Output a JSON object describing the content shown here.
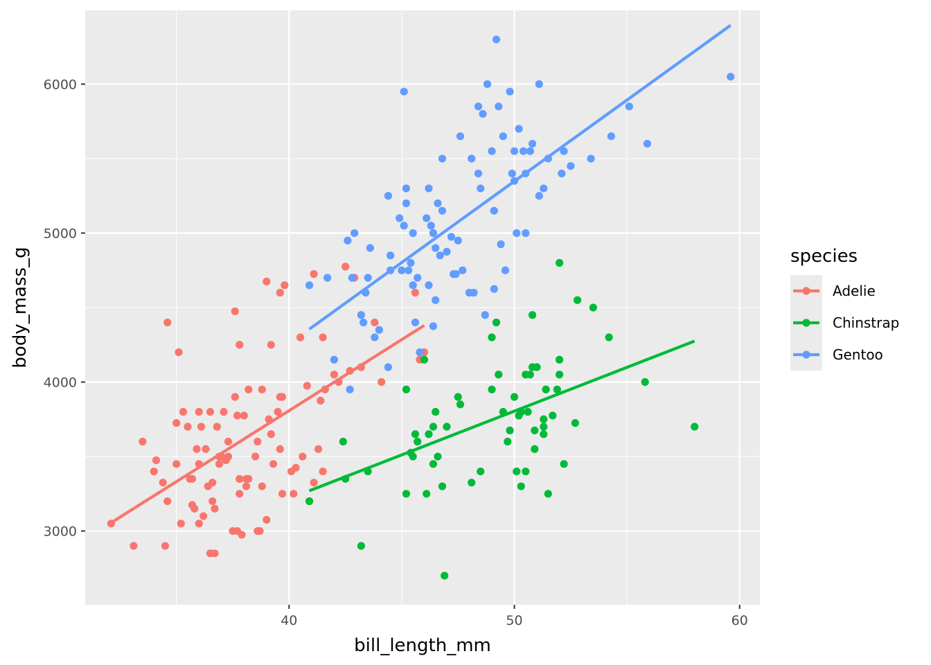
{
  "chart_data": {
    "type": "scatter",
    "title": "",
    "xlabel": "bill_length_mm",
    "ylabel": "body_mass_g",
    "xlim": [
      30.95,
      60.9
    ],
    "ylim": [
      2505,
      6495
    ],
    "x_ticks": [
      40,
      50,
      60
    ],
    "y_ticks": [
      3000,
      4000,
      5000,
      6000
    ],
    "x_tick_labels": [
      "40",
      "50",
      "60"
    ],
    "y_tick_labels": [
      "3000",
      "4000",
      "5000",
      "6000"
    ],
    "grid": true,
    "legend": {
      "title": "species",
      "placement": "right"
    },
    "series": [
      {
        "name": "Adelie",
        "color": "#F8766D",
        "points": [
          [
            32.1,
            3050
          ],
          [
            33.1,
            2900
          ],
          [
            33.5,
            3600
          ],
          [
            34.0,
            3400
          ],
          [
            34.1,
            3475
          ],
          [
            34.4,
            3325
          ],
          [
            34.5,
            2900
          ],
          [
            34.6,
            3200
          ],
          [
            34.6,
            4400
          ],
          [
            35.0,
            3450
          ],
          [
            35.0,
            3725
          ],
          [
            35.1,
            4200
          ],
          [
            35.2,
            3050
          ],
          [
            35.3,
            3800
          ],
          [
            35.5,
            3700
          ],
          [
            35.6,
            3350
          ],
          [
            35.7,
            3175
          ],
          [
            35.7,
            3350
          ],
          [
            35.8,
            3150
          ],
          [
            35.9,
            3550
          ],
          [
            36.0,
            3800
          ],
          [
            36.0,
            3050
          ],
          [
            36.0,
            3450
          ],
          [
            36.1,
            3700
          ],
          [
            36.2,
            3100
          ],
          [
            36.3,
            3550
          ],
          [
            36.4,
            3300
          ],
          [
            36.5,
            3800
          ],
          [
            36.5,
            2850
          ],
          [
            36.6,
            3325
          ],
          [
            36.6,
            3200
          ],
          [
            36.7,
            2850
          ],
          [
            36.7,
            3150
          ],
          [
            36.8,
            3700
          ],
          [
            36.9,
            3450
          ],
          [
            37.0,
            3500
          ],
          [
            37.1,
            3800
          ],
          [
            37.2,
            3475
          ],
          [
            37.3,
            3500
          ],
          [
            37.5,
            3000
          ],
          [
            37.6,
            3900
          ],
          [
            37.7,
            3775
          ],
          [
            37.7,
            3000
          ],
          [
            37.8,
            3350
          ],
          [
            37.8,
            3350
          ],
          [
            37.8,
            3250
          ],
          [
            37.9,
            2975
          ],
          [
            38.1,
            3300
          ],
          [
            38.1,
            3350
          ],
          [
            38.2,
            3350
          ],
          [
            38.5,
            3500
          ],
          [
            38.6,
            3600
          ],
          [
            38.6,
            3000
          ],
          [
            38.7,
            3000
          ],
          [
            38.8,
            3300
          ],
          [
            39.0,
            3075
          ],
          [
            39.1,
            3750
          ],
          [
            39.2,
            3650
          ],
          [
            39.3,
            3450
          ],
          [
            39.5,
            3800
          ],
          [
            39.6,
            3550
          ],
          [
            39.7,
            3250
          ],
          [
            40.1,
            3400
          ],
          [
            40.2,
            3250
          ],
          [
            40.3,
            3425
          ],
          [
            40.6,
            3500
          ],
          [
            40.9,
            3200
          ],
          [
            41.1,
            3325
          ],
          [
            41.3,
            3550
          ],
          [
            41.5,
            3400
          ],
          [
            37.6,
            4475
          ],
          [
            38.2,
            3950
          ],
          [
            38.8,
            3950
          ],
          [
            39.0,
            4675
          ],
          [
            39.2,
            4250
          ],
          [
            39.6,
            4600
          ],
          [
            39.7,
            3900
          ],
          [
            39.8,
            4650
          ],
          [
            40.5,
            4300
          ],
          [
            40.8,
            3975
          ],
          [
            41.1,
            4725
          ],
          [
            41.4,
            3875
          ],
          [
            41.5,
            4300
          ],
          [
            41.6,
            3950
          ],
          [
            42.0,
            4050
          ],
          [
            42.2,
            4000
          ],
          [
            42.5,
            4775
          ],
          [
            42.7,
            4075
          ],
          [
            42.9,
            4700
          ],
          [
            43.2,
            4100
          ],
          [
            43.8,
            4400
          ],
          [
            44.1,
            4000
          ],
          [
            45.6,
            4600
          ],
          [
            46.0,
            4200
          ],
          [
            45.8,
            4150
          ],
          [
            36.9,
            3500
          ],
          [
            37.3,
            3600
          ],
          [
            38.0,
            3775
          ],
          [
            37.8,
            4250
          ],
          [
            39.6,
            3900
          ]
        ]
      },
      {
        "name": "Chinstrap",
        "color": "#00BA38",
        "points": [
          [
            40.9,
            3200
          ],
          [
            42.4,
            3600
          ],
          [
            42.5,
            3350
          ],
          [
            43.2,
            2900
          ],
          [
            43.5,
            3400
          ],
          [
            45.2,
            3950
          ],
          [
            45.2,
            3250
          ],
          [
            45.4,
            3525
          ],
          [
            45.5,
            3500
          ],
          [
            45.6,
            3650
          ],
          [
            45.7,
            3600
          ],
          [
            46.0,
            4150
          ],
          [
            46.1,
            3250
          ],
          [
            46.2,
            3650
          ],
          [
            46.4,
            3700
          ],
          [
            46.4,
            3450
          ],
          [
            46.5,
            3800
          ],
          [
            46.6,
            3500
          ],
          [
            46.8,
            3300
          ],
          [
            46.9,
            2700
          ],
          [
            47.0,
            3700
          ],
          [
            47.5,
            3900
          ],
          [
            47.6,
            3850
          ],
          [
            48.1,
            3325
          ],
          [
            48.5,
            3400
          ],
          [
            49.0,
            4300
          ],
          [
            49.0,
            3950
          ],
          [
            49.2,
            4400
          ],
          [
            49.3,
            4050
          ],
          [
            49.5,
            3800
          ],
          [
            49.7,
            3600
          ],
          [
            49.8,
            3675
          ],
          [
            50.0,
            3900
          ],
          [
            50.1,
            3400
          ],
          [
            50.2,
            3775
          ],
          [
            50.3,
            3800
          ],
          [
            50.3,
            3300
          ],
          [
            50.5,
            3400
          ],
          [
            50.5,
            4050
          ],
          [
            50.6,
            3800
          ],
          [
            50.7,
            4050
          ],
          [
            50.8,
            4450
          ],
          [
            50.8,
            4100
          ],
          [
            50.9,
            3675
          ],
          [
            50.9,
            3550
          ],
          [
            51.0,
            4100
          ],
          [
            51.3,
            3750
          ],
          [
            51.3,
            3700
          ],
          [
            51.3,
            3650
          ],
          [
            51.4,
            3950
          ],
          [
            51.5,
            3250
          ],
          [
            51.7,
            3775
          ],
          [
            51.9,
            3950
          ],
          [
            52.0,
            4800
          ],
          [
            52.0,
            4150
          ],
          [
            52.0,
            4050
          ],
          [
            52.2,
            3450
          ],
          [
            52.7,
            3725
          ],
          [
            52.8,
            4550
          ],
          [
            53.5,
            4500
          ],
          [
            54.2,
            4300
          ],
          [
            55.8,
            4000
          ],
          [
            58.0,
            3700
          ]
        ]
      },
      {
        "name": "Gentoo",
        "color": "#619CFF",
        "points": [
          [
            40.9,
            4650
          ],
          [
            41.7,
            4700
          ],
          [
            42.0,
            4150
          ],
          [
            42.6,
            4950
          ],
          [
            42.7,
            3950
          ],
          [
            42.8,
            4700
          ],
          [
            42.9,
            5000
          ],
          [
            43.2,
            4450
          ],
          [
            43.3,
            4400
          ],
          [
            43.4,
            4600
          ],
          [
            43.5,
            4700
          ],
          [
            43.6,
            4900
          ],
          [
            43.8,
            4300
          ],
          [
            44.0,
            4350
          ],
          [
            44.4,
            5250
          ],
          [
            44.5,
            4850
          ],
          [
            44.5,
            4750
          ],
          [
            44.9,
            5100
          ],
          [
            45.0,
            4750
          ],
          [
            45.1,
            5050
          ],
          [
            45.2,
            5300
          ],
          [
            45.2,
            5200
          ],
          [
            45.3,
            4750
          ],
          [
            45.4,
            4800
          ],
          [
            45.5,
            4650
          ],
          [
            45.5,
            5000
          ],
          [
            45.7,
            4700
          ],
          [
            45.8,
            4200
          ],
          [
            46.1,
            5100
          ],
          [
            46.2,
            5300
          ],
          [
            46.2,
            4650
          ],
          [
            46.3,
            5050
          ],
          [
            46.4,
            5000
          ],
          [
            46.5,
            4900
          ],
          [
            46.5,
            4550
          ],
          [
            46.6,
            5200
          ],
          [
            46.7,
            4850
          ],
          [
            46.8,
            5500
          ],
          [
            46.8,
            5150
          ],
          [
            47.0,
            4875
          ],
          [
            47.2,
            4975
          ],
          [
            47.3,
            4725
          ],
          [
            47.4,
            4725
          ],
          [
            47.5,
            4950
          ],
          [
            47.6,
            5650
          ],
          [
            47.7,
            4750
          ],
          [
            48.1,
            5500
          ],
          [
            48.2,
            4600
          ],
          [
            48.4,
            5400
          ],
          [
            48.4,
            5850
          ],
          [
            48.5,
            5300
          ],
          [
            48.6,
            5800
          ],
          [
            48.7,
            4450
          ],
          [
            48.8,
            6000
          ],
          [
            49.0,
            5550
          ],
          [
            49.1,
            5150
          ],
          [
            49.1,
            4625
          ],
          [
            49.2,
            6300
          ],
          [
            49.3,
            5850
          ],
          [
            49.4,
            4925
          ],
          [
            49.5,
            5650
          ],
          [
            49.6,
            4750
          ],
          [
            49.8,
            5950
          ],
          [
            49.9,
            5400
          ],
          [
            50.0,
            5550
          ],
          [
            50.0,
            5350
          ],
          [
            50.1,
            5000
          ],
          [
            50.2,
            5700
          ],
          [
            50.4,
            5550
          ],
          [
            50.5,
            5000
          ],
          [
            50.5,
            5400
          ],
          [
            50.7,
            5550
          ],
          [
            50.8,
            5600
          ],
          [
            51.1,
            6000
          ],
          [
            51.1,
            5250
          ],
          [
            51.3,
            5300
          ],
          [
            51.5,
            5500
          ],
          [
            52.1,
            5400
          ],
          [
            52.2,
            5550
          ],
          [
            52.5,
            5450
          ],
          [
            53.4,
            5500
          ],
          [
            54.3,
            5650
          ],
          [
            55.1,
            5850
          ],
          [
            55.9,
            5600
          ],
          [
            59.6,
            6050
          ],
          [
            45.1,
            5950
          ],
          [
            48.0,
            4600
          ],
          [
            46.4,
            4375
          ],
          [
            45.6,
            4400
          ],
          [
            44.4,
            4100
          ]
        ]
      }
    ],
    "fit_lines": [
      {
        "series": "Adelie",
        "x": [
          32.1,
          46.0
        ],
        "y": [
          3055,
          4380
        ]
      },
      {
        "series": "Chinstrap",
        "x": [
          40.9,
          58.0
        ],
        "y": [
          3270,
          4275
        ]
      },
      {
        "series": "Gentoo",
        "x": [
          40.9,
          59.6
        ],
        "y": [
          4355,
          6395
        ]
      }
    ]
  }
}
